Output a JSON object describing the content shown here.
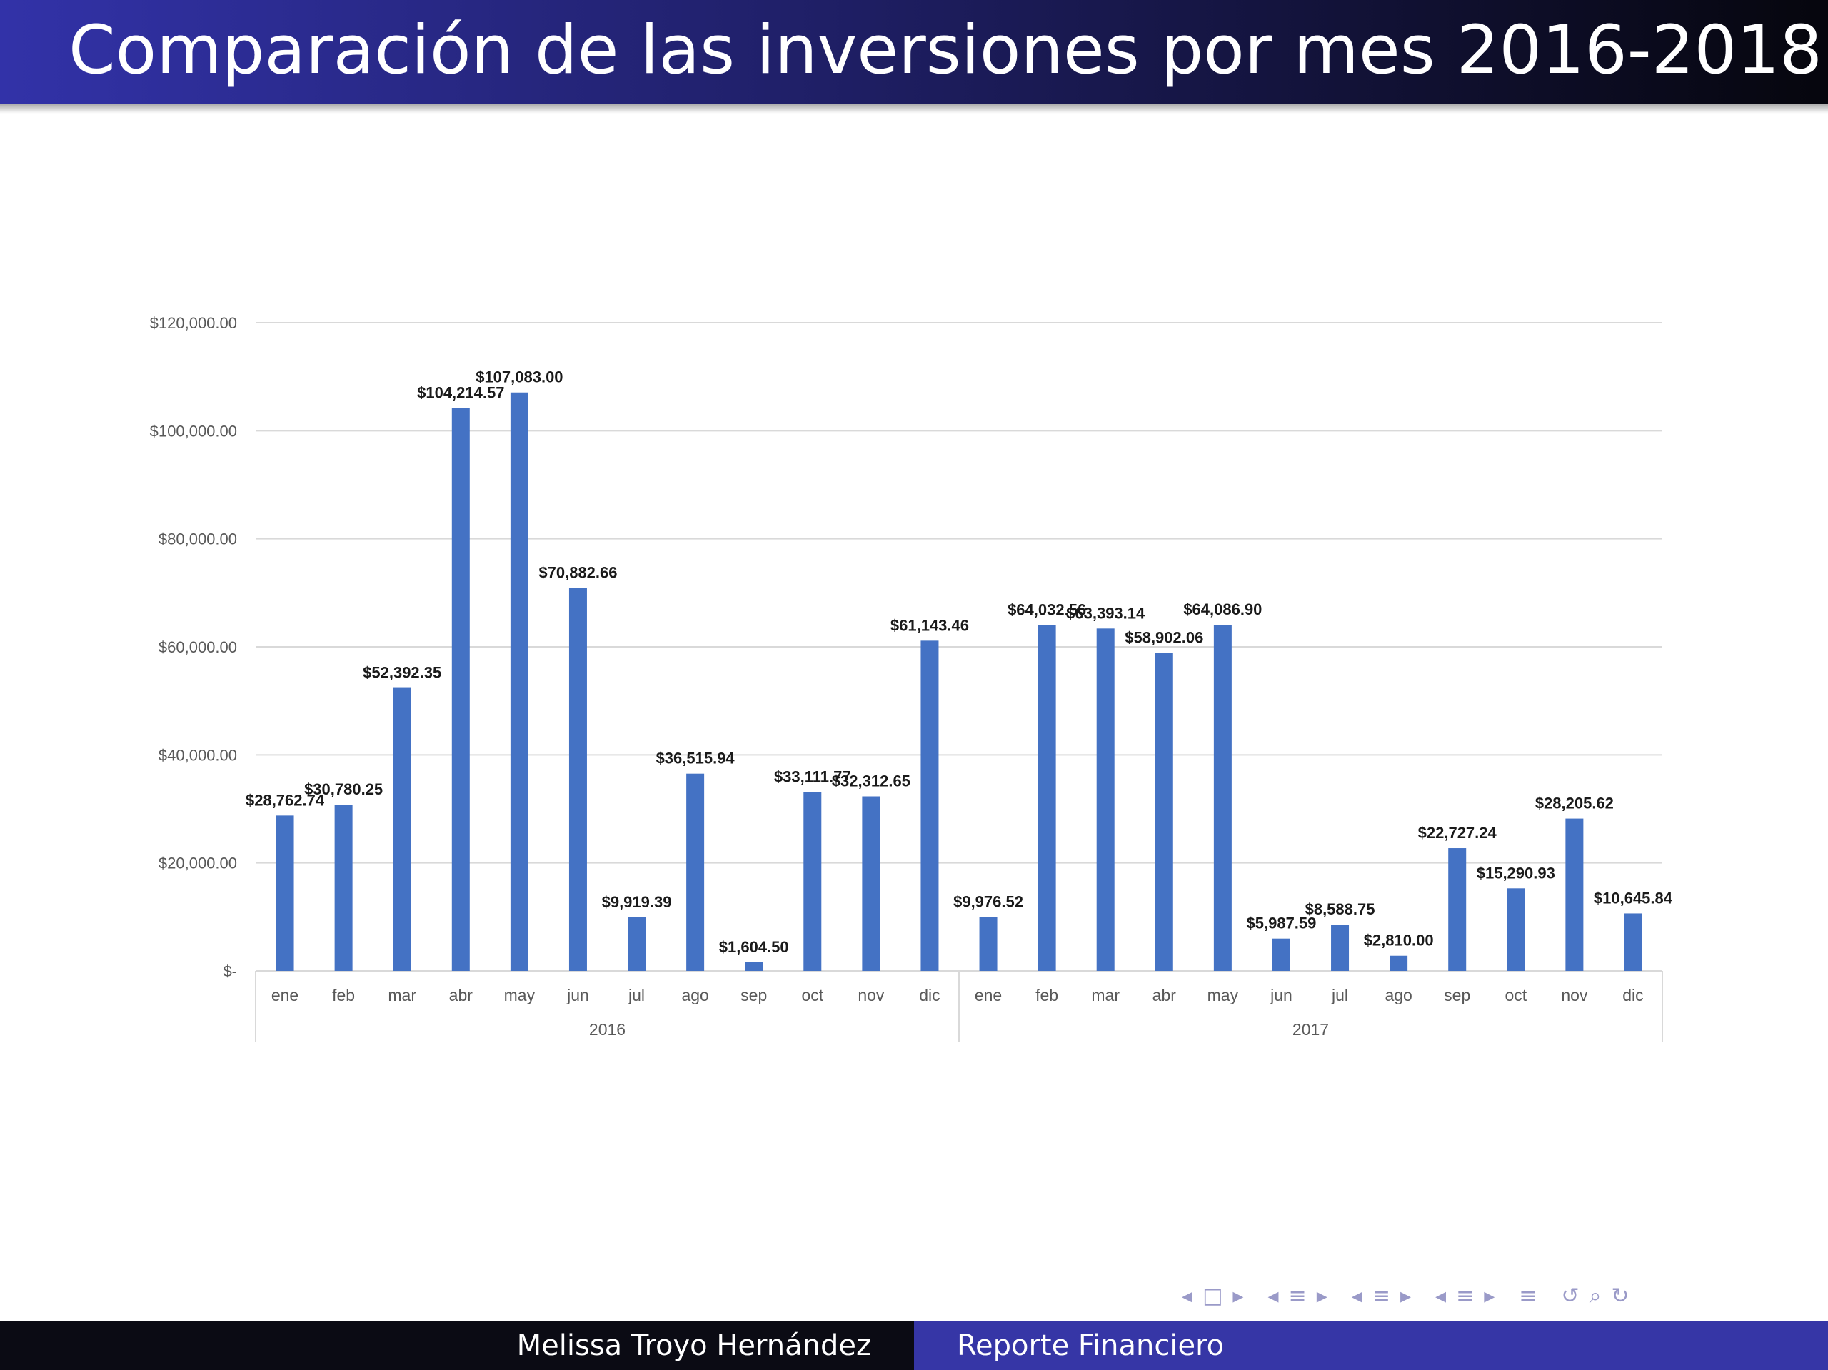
{
  "slide": {
    "title": "Comparación de las inversiones por mes 2016-2018"
  },
  "footer": {
    "author": "Melissa Troyo Hernández",
    "doc_title": "Reporte Financiero"
  },
  "nav_icons": [
    "nav-prev-icon",
    "nav-frame-icon",
    "nav-next-icon",
    "nav-prev-icon",
    "nav-subsection-icon",
    "nav-next-icon",
    "nav-prev-icon",
    "nav-section-icon",
    "nav-next-icon",
    "nav-prev-icon",
    "nav-toc-icon",
    "nav-next-icon",
    "nav-appendix-icon",
    "undo-icon",
    "search-icon",
    "redo-icon"
  ],
  "colors": {
    "bar": "#4472c4",
    "title_bar_left": "#3232a8",
    "title_bar_right": "#06060d",
    "footer_left": "#0b0b14",
    "footer_right": "#3636a6"
  },
  "chart_data": {
    "type": "bar",
    "title": "",
    "xlabel": "",
    "ylabel": "",
    "ylim": [
      0,
      120000
    ],
    "y_ticks": [
      0,
      20000,
      40000,
      60000,
      80000,
      100000,
      120000
    ],
    "y_tick_labels": [
      "$-",
      "$20,000.00",
      "$40,000.00",
      "$60,000.00",
      "$80,000.00",
      "$100,000.00",
      "$120,000.00"
    ],
    "grid": true,
    "groups": [
      {
        "label": "2016",
        "categories": [
          "ene",
          "feb",
          "mar",
          "abr",
          "may",
          "jun",
          "jul",
          "ago",
          "sep",
          "oct",
          "nov",
          "dic"
        ]
      },
      {
        "label": "2017",
        "categories": [
          "ene",
          "feb",
          "mar",
          "abr",
          "may",
          "jun",
          "jul",
          "ago",
          "sep",
          "oct",
          "nov",
          "dic"
        ]
      }
    ],
    "values": [
      28762.74,
      30780.25,
      52392.35,
      104214.57,
      107083.0,
      70882.66,
      9919.39,
      36515.94,
      1604.5,
      33111.77,
      32312.65,
      61143.46,
      9976.52,
      64032.56,
      63393.14,
      58902.06,
      64086.9,
      5987.59,
      8588.75,
      2810.0,
      22727.24,
      15290.93,
      28205.62,
      10645.84
    ],
    "data_labels": [
      "$28,762.74",
      "$30,780.25",
      "$52,392.35",
      "$104,214.57",
      "$107,083.00",
      "$70,882.66",
      "$9,919.39",
      "$36,515.94",
      "$1,604.50",
      "$33,111.77",
      "$32,312.65",
      "$61,143.46",
      "$9,976.52",
      "$64,032.56",
      "$63,393.14",
      "$58,902.06",
      "$64,086.90",
      "$5,987.59",
      "$8,588.75",
      "$2,810.00",
      "$22,727.24",
      "$15,290.93",
      "$28,205.62",
      "$10,645.84"
    ]
  }
}
